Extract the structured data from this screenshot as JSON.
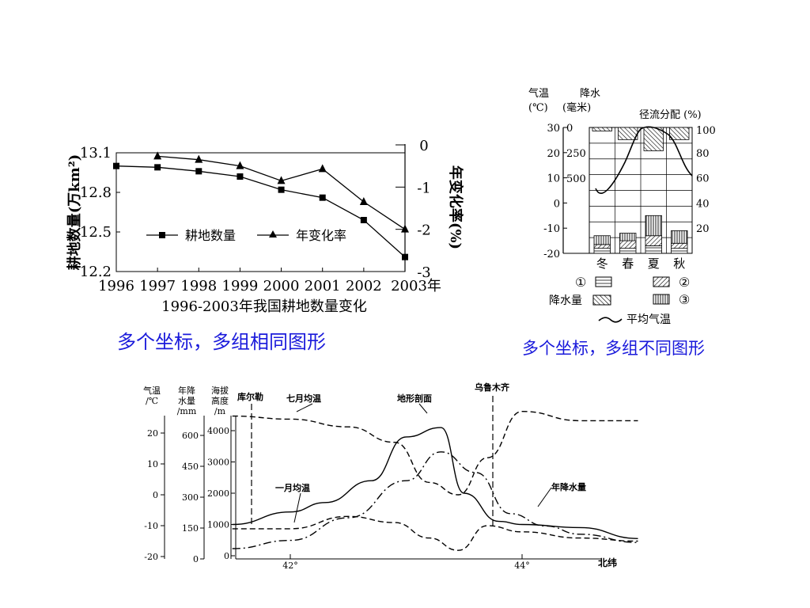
{
  "captions": {
    "chart1": "多个坐标，多组相同图形",
    "chart2": "多个坐标，多组不同图形"
  },
  "chart_data": [
    {
      "type": "line",
      "title": "1996-2003年我国耕地数量变化",
      "x": [
        1996,
        1997,
        1998,
        1999,
        2000,
        2001,
        2002,
        2003
      ],
      "x_tick_labels": [
        "1996",
        "1997",
        "1998",
        "1999",
        "2000",
        "2001",
        "2002",
        "2003年"
      ],
      "ylabel_left": "耕地数量(万km²)",
      "ylabel_right": "年变化率(%)",
      "yticks_left": [
        "13.1",
        "12.8",
        "12.5",
        "12.2"
      ],
      "yticks_right": [
        "0",
        "-1",
        "-2",
        "-3"
      ],
      "ylim_left": [
        12.2,
        13.1
      ],
      "ylim_right": [
        -3,
        0
      ],
      "series": [
        {
          "name": "耕地数量",
          "axis": "left",
          "marker": "square",
          "x": [
            1996,
            1997,
            1998,
            1999,
            2000,
            2001,
            2002,
            2003
          ],
          "values": [
            13.0,
            12.99,
            12.96,
            12.92,
            12.82,
            12.76,
            12.59,
            12.31
          ]
        },
        {
          "name": "年变化率",
          "axis": "right",
          "marker": "triangle",
          "x": [
            1997,
            1998,
            1999,
            2000,
            2001,
            2002,
            2003
          ],
          "values": [
            -0.27,
            -0.35,
            -0.5,
            -0.85,
            -0.57,
            -1.35,
            -2.0
          ]
        }
      ],
      "legend_position": "center"
    },
    {
      "type": "bar",
      "axis_titles": {
        "temp": "气温",
        "temp_unit": "(℃)",
        "precip": "降水",
        "precip_unit": "(毫米)",
        "runoff": "径流分配 (%)"
      },
      "categories": [
        "冬",
        "春",
        "夏",
        "秋"
      ],
      "temp_ticks": [
        "30",
        "20",
        "10",
        "0",
        "-10",
        "-20"
      ],
      "precip_ticks": [
        "0",
        "250",
        "500"
      ],
      "runoff_ticks": [
        "100",
        "80",
        "60",
        "40",
        "20"
      ],
      "runoff_stacks": [
        {
          "season": "冬",
          "s1": 4,
          "s2": 3,
          "s3": 7
        },
        {
          "season": "春",
          "s1": 4,
          "s2": 6,
          "s3": 6
        },
        {
          "season": "夏",
          "s1": 6,
          "s2": 8,
          "s3": 16
        },
        {
          "season": "秋",
          "s1": 4,
          "s2": 4,
          "s3": 10
        }
      ],
      "precipitation": [
        35,
        120,
        230,
        120
      ],
      "legend": {
        "mark1": "①",
        "mark2": "②",
        "mark3": "③",
        "precip": "降水量",
        "temp": "平均气温"
      }
    },
    {
      "type": "line",
      "axis_titles": {
        "temp": [
          "气温",
          "/℃"
        ],
        "precip": [
          "年降",
          "水量",
          "/mm"
        ],
        "elev": [
          "海拔",
          "高度",
          "/m"
        ]
      },
      "temp_ticks": [
        "20",
        "10",
        "0",
        "-10",
        "-20"
      ],
      "precip_ticks": [
        "600",
        "450",
        "300",
        "150",
        "0"
      ],
      "elev_ticks": [
        "4000",
        "3000",
        "2000",
        "1000",
        "0"
      ],
      "x_ticks": [
        "42°",
        "44°"
      ],
      "xlabel": "北纬",
      "annotations": [
        "库尔勒",
        "乌鲁木齐",
        "七月均温",
        "地形剖面",
        "一月均温",
        "年降水量"
      ],
      "series": [
        {
          "name": "七月均温",
          "style": "dashed",
          "lat": [
            41.5,
            42,
            42.5,
            42.9,
            43.2,
            43.45,
            43.7,
            44,
            44.5,
            45
          ],
          "values": [
            25.5,
            24.5,
            22,
            17,
            4,
            0,
            12,
            27,
            24,
            24
          ]
        },
        {
          "name": "一月均温",
          "style": "dashed",
          "lat": [
            41.5,
            42,
            42.5,
            42.9,
            43.2,
            43.45,
            43.7,
            44,
            44.5,
            45
          ],
          "values": [
            -11,
            -11,
            -7,
            -9,
            -14,
            -18,
            -10,
            -12,
            -14,
            -15
          ]
        },
        {
          "name": "地形剖面",
          "style": "solid",
          "lat": [
            41.5,
            42,
            42.3,
            42.7,
            43,
            43.3,
            43.5,
            43.8,
            44,
            44.5,
            45
          ],
          "values": [
            1000,
            1400,
            1700,
            2400,
            3800,
            4100,
            2000,
            1100,
            1000,
            900,
            550
          ]
        },
        {
          "name": "年降水量",
          "style": "dashdot",
          "lat": [
            41.5,
            42,
            42.5,
            43,
            43.3,
            43.6,
            43.9,
            44.2,
            44.5,
            45
          ],
          "values": [
            50,
            90,
            200,
            380,
            520,
            420,
            220,
            160,
            120,
            80
          ]
        }
      ]
    }
  ]
}
